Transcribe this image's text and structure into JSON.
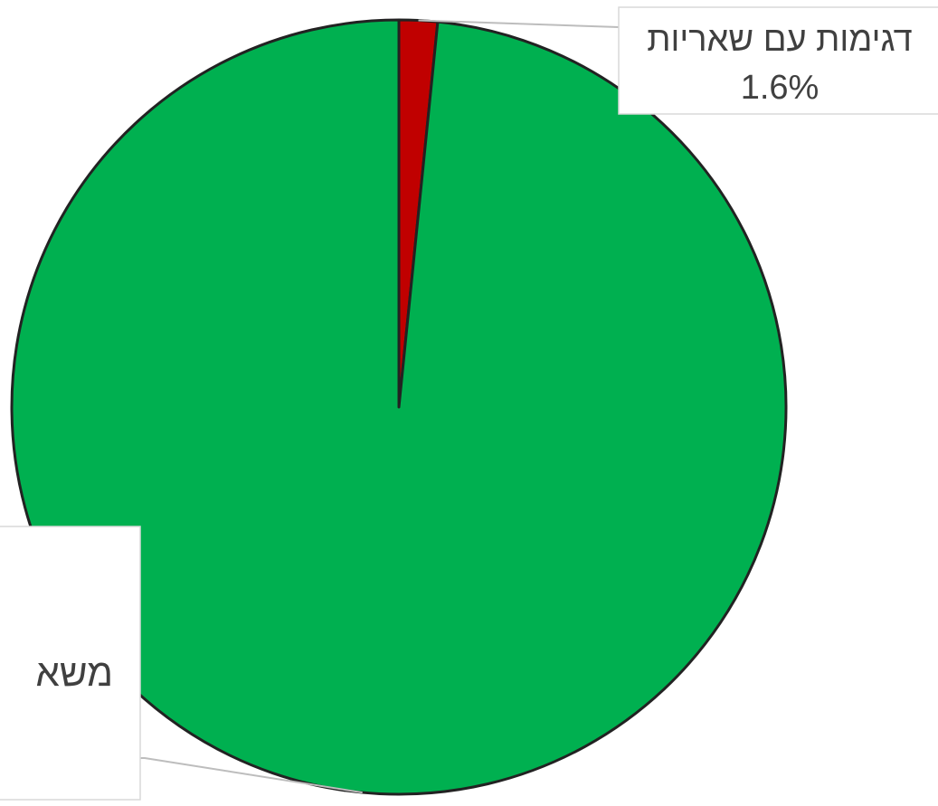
{
  "chart_data": {
    "type": "pie",
    "slices": [
      {
        "label": "דגימות עם שאריות",
        "value": 1.6,
        "value_label": "1.6%",
        "color": "#C00000"
      },
      {
        "label": "משא",
        "value": 98.4,
        "color": "#00B050"
      }
    ],
    "start_angle_deg": 0,
    "direction": "clockwise",
    "border_color": "#222222",
    "legend": "none"
  }
}
